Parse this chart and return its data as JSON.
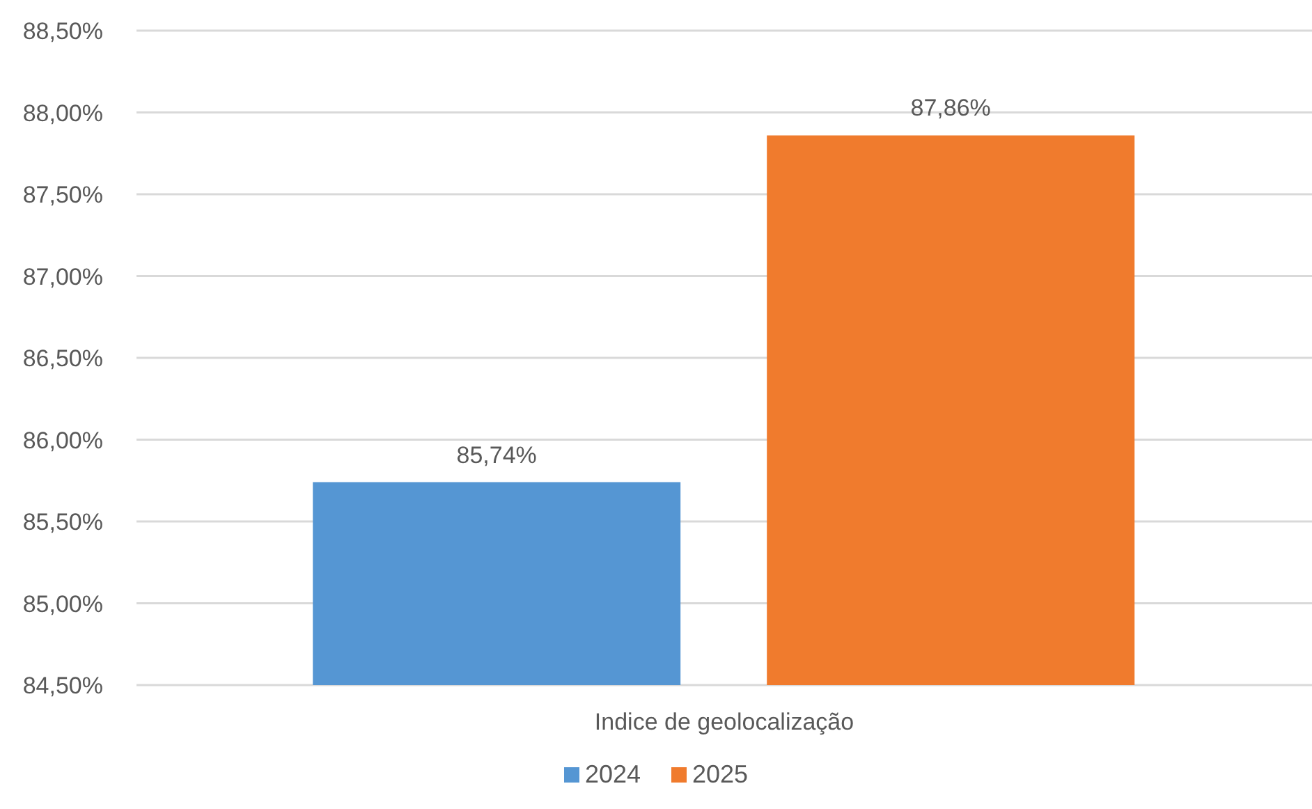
{
  "chart_data": {
    "type": "bar",
    "categories": [
      "Indice de geolocalização"
    ],
    "series": [
      {
        "name": "2024",
        "color": "#5596d3",
        "values": [
          85.74
        ],
        "value_labels": [
          "85,74%"
        ]
      },
      {
        "name": "2025",
        "color": "#f07b2d",
        "values": [
          87.86
        ],
        "value_labels": [
          "87,86%"
        ]
      }
    ],
    "ylim": [
      84.5,
      88.5
    ],
    "yticks": [
      {
        "value": 84.5,
        "label": "84,50%"
      },
      {
        "value": 85,
        "label": "85,00%"
      },
      {
        "value": 85.5,
        "label": "85,50%"
      },
      {
        "value": 86,
        "label": "86,00%"
      },
      {
        "value": 86.5,
        "label": "86,50%"
      },
      {
        "value": 87,
        "label": "87,00%"
      },
      {
        "value": 87.5,
        "label": "87,50%"
      },
      {
        "value": 88,
        "label": "88,00%"
      },
      {
        "value": 88.5,
        "label": "88,50%"
      }
    ],
    "grid": "y",
    "legend": "bottom"
  }
}
